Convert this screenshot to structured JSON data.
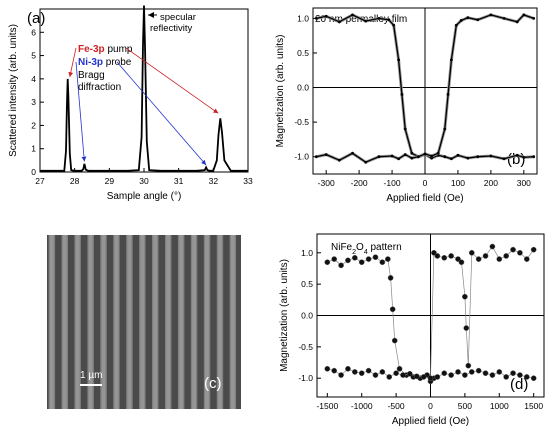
{
  "chart_data": [
    {
      "panel": "a",
      "type": "line",
      "panel_label": "(a)",
      "xlabel": "Sample angle (°)",
      "ylabel": "Scattered intensity (arb. units)",
      "xlim": [
        27,
        33
      ],
      "ylim": [
        0,
        7
      ],
      "xticks": [
        "27",
        "28",
        "29",
        "30",
        "31",
        "32",
        "33"
      ],
      "yticks": [
        "0",
        "1",
        "2",
        "3",
        "4",
        "5",
        "6"
      ],
      "series": [
        {
          "x": [
            27.0,
            27.5,
            27.7,
            27.75,
            27.78,
            27.8,
            27.82,
            27.86,
            27.9,
            28.0,
            28.2,
            28.25,
            28.28,
            28.32,
            28.4,
            29.0,
            29.5,
            29.85,
            29.93,
            29.97,
            30.0,
            30.03,
            30.08,
            30.15,
            30.5,
            31.0,
            31.5,
            31.75,
            31.79,
            31.83,
            31.9,
            32.0,
            32.1,
            32.15,
            32.2,
            32.25,
            32.32,
            32.5,
            33.0
          ],
          "y": [
            0.05,
            0.05,
            0.06,
            0.9,
            3.0,
            4.0,
            3.2,
            0.8,
            0.08,
            0.05,
            0.05,
            0.12,
            0.35,
            0.1,
            0.05,
            0.05,
            0.05,
            0.08,
            1.5,
            5.5,
            7.15,
            5.4,
            1.3,
            0.08,
            0.05,
            0.05,
            0.05,
            0.08,
            0.2,
            0.08,
            0.05,
            0.06,
            0.5,
            1.6,
            2.3,
            1.7,
            0.5,
            0.06,
            0.05
          ]
        }
      ],
      "annotations": {
        "fe_label": "Fe-3p",
        "fe_suffix": " pump",
        "ni_label": "Ni-3p",
        "ni_suffix": " probe",
        "bragg_1": "Bragg",
        "bragg_2": "diffraction",
        "specular_1": "specular",
        "specular_2": "reflectivity"
      },
      "colors": {
        "fe": "#cc2222",
        "ni": "#2233cc",
        "trace": "#000000"
      }
    },
    {
      "panel": "b",
      "type": "line",
      "panel_label": "(b)",
      "title": "20 nm permalloy film",
      "xlabel": "Applied field (Oe)",
      "ylabel": "Magnetization (arb. units)",
      "xlim": [
        -340,
        340
      ],
      "ylim": [
        -1.25,
        1.15
      ],
      "xticks": [
        "-300",
        "-200",
        "-100",
        "0",
        "100",
        "200",
        "300"
      ],
      "yticks": [
        "-1.0",
        "-0.5",
        "0.0",
        "0.5",
        "1.0"
      ],
      "series": [
        {
          "x": [
            -330,
            -300,
            -260,
            -220,
            -180,
            -140,
            -110,
            -95,
            -80,
            -70,
            -60,
            -40,
            -20,
            0,
            20,
            40,
            60,
            80,
            100,
            130,
            160,
            200,
            240,
            280,
            300,
            330
          ],
          "y": [
            1.0,
            1.03,
            0.95,
            1.05,
            0.96,
            1.0,
            0.98,
            0.9,
            0.4,
            -0.1,
            -0.6,
            -0.95,
            -1.0,
            -0.97,
            -1.02,
            -0.98,
            -1.0,
            -1.03,
            -0.98,
            -1.02,
            -1.0,
            -0.99,
            -1.03,
            -0.98,
            -1.01,
            -1.0
          ]
        },
        {
          "x": [
            -330,
            -300,
            -260,
            -220,
            -180,
            -140,
            -100,
            -80,
            -60,
            -40,
            -20,
            0,
            20,
            40,
            60,
            70,
            80,
            95,
            110,
            130,
            160,
            200,
            240,
            280,
            300,
            330
          ],
          "y": [
            -1.0,
            -0.97,
            -1.05,
            -0.95,
            -1.08,
            -1.0,
            -0.99,
            -1.03,
            -0.97,
            -1.02,
            -1.0,
            -0.96,
            -0.99,
            -0.95,
            -0.6,
            -0.1,
            0.4,
            0.9,
            0.97,
            1.01,
            0.98,
            1.05,
            1.0,
            0.95,
            1.05,
            1.0
          ]
        }
      ]
    },
    {
      "panel": "c",
      "type": "image",
      "panel_label": "(c)",
      "scale_bar": "1 µm"
    },
    {
      "panel": "d",
      "type": "scatter",
      "panel_label": "(d)",
      "title_prefix": "NiFe",
      "title_sub1": "2",
      "title_mid": "O",
      "title_sub2": "4",
      "title_suffix": " pattern",
      "xlabel": "Applied field (Oe)",
      "ylabel": "Magnetization (arb. units)",
      "xlim": [
        -1650,
        1650
      ],
      "ylim": [
        -1.3,
        1.3
      ],
      "xticks": [
        "-1500",
        "-1000",
        "-500",
        "0",
        "500",
        "1000",
        "1500"
      ],
      "yticks": [
        "-1.0",
        "-0.5",
        "0.0",
        "0.5",
        "1.0"
      ],
      "series": [
        {
          "x": [
            -1500,
            -1400,
            -1300,
            -1200,
            -1100,
            -1000,
            -900,
            -800,
            -700,
            -620,
            -580,
            -550,
            -520,
            -450,
            -350,
            -250,
            -150,
            -50,
            0,
            50,
            100,
            200,
            300,
            400,
            500,
            600,
            700,
            800,
            900,
            1000,
            1100,
            1200,
            1300,
            1400,
            1500
          ],
          "y": [
            0.85,
            0.9,
            0.8,
            0.88,
            0.92,
            0.85,
            0.9,
            0.93,
            0.85,
            0.9,
            0.6,
            0.1,
            -0.4,
            -0.85,
            -0.95,
            -0.98,
            -1.0,
            -0.95,
            -1.05,
            -1.0,
            -0.98,
            -0.92,
            -0.95,
            -0.9,
            -0.95,
            -0.9,
            -0.88,
            -0.92,
            -0.95,
            -0.9,
            -0.98,
            -0.92,
            -0.95,
            -0.98,
            -1.0
          ]
        },
        {
          "x": [
            -1500,
            -1400,
            -1300,
            -1200,
            -1100,
            -1000,
            -900,
            -800,
            -700,
            -600,
            -500,
            -400,
            -300,
            -200,
            -100,
            0,
            50,
            100,
            200,
            300,
            400,
            450,
            500,
            520,
            550,
            600,
            700,
            800,
            900,
            1000,
            1100,
            1200,
            1300,
            1400,
            1500
          ],
          "y": [
            -0.85,
            -0.88,
            -0.95,
            -0.85,
            -0.9,
            -0.92,
            -0.88,
            -0.95,
            -0.9,
            -0.98,
            -0.92,
            -0.95,
            -0.93,
            -0.97,
            -0.98,
            -1.0,
            1.0,
            0.95,
            0.92,
            0.95,
            0.9,
            0.85,
            0.3,
            -0.2,
            -0.8,
            1.0,
            0.9,
            0.95,
            1.1,
            0.9,
            0.95,
            1.05,
            1.0,
            0.9,
            1.05
          ]
        }
      ]
    }
  ]
}
